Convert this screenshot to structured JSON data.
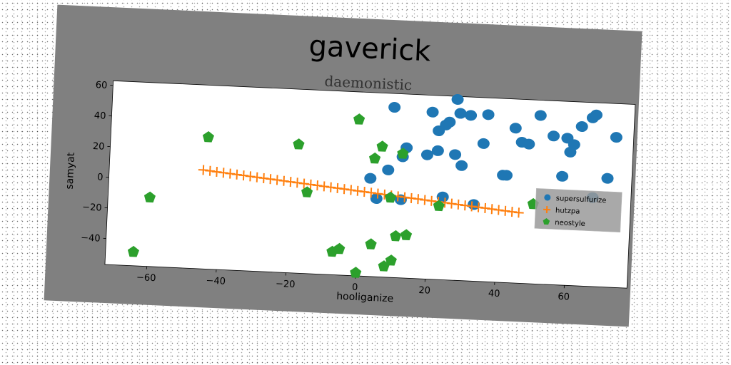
{
  "chart_data": {
    "type": "scatter",
    "title": "gaverick",
    "subtitle": "daemonistic",
    "xlabel": "hooliganize",
    "ylabel": "samyat",
    "xlim": [
      -72,
      78
    ],
    "ylim": [
      -57,
      63
    ],
    "xticks": [
      -60,
      -40,
      -20,
      0,
      20,
      40,
      60
    ],
    "yticks": [
      -40,
      -20,
      0,
      20,
      40,
      60
    ],
    "xtick_labels": [
      "−60",
      "−40",
      "−20",
      "0",
      "20",
      "40",
      "60"
    ],
    "ytick_labels": [
      "−40",
      "−20",
      "0",
      "20",
      "40",
      "60"
    ],
    "legend_position": "right",
    "grid": false,
    "background_color": "#808080",
    "series": [
      {
        "name": "supersulfurize",
        "marker": "circle",
        "color": "#1f77b4",
        "points": [
          [
            9,
            54
          ],
          [
            27,
            61
          ],
          [
            20,
            52
          ],
          [
            25,
            46
          ],
          [
            24,
            44
          ],
          [
            28,
            52
          ],
          [
            31,
            51
          ],
          [
            36,
            52
          ],
          [
            22,
            40
          ],
          [
            44,
            44
          ],
          [
            51,
            53
          ],
          [
            55,
            40
          ],
          [
            59,
            39
          ],
          [
            61,
            35
          ],
          [
            63,
            47
          ],
          [
            66,
            53
          ],
          [
            67,
            55
          ],
          [
            73,
            41
          ],
          [
            13,
            28
          ],
          [
            12,
            22
          ],
          [
            19,
            24
          ],
          [
            22,
            27
          ],
          [
            27,
            25
          ],
          [
            29,
            18
          ],
          [
            35,
            33
          ],
          [
            41,
            13
          ],
          [
            42,
            13
          ],
          [
            46,
            35
          ],
          [
            48,
            34
          ],
          [
            60,
            30
          ],
          [
            58,
            14
          ],
          [
            71,
            14
          ],
          [
            8,
            13
          ],
          [
            3,
            7
          ],
          [
            5,
            -6
          ],
          [
            12,
            -6
          ],
          [
            24,
            -3
          ],
          [
            33,
            -7
          ],
          [
            67,
            1
          ]
        ]
      },
      {
        "name": "hutzpa",
        "marker": "plus",
        "color": "#ff7f0e",
        "x_start": -45,
        "x_end": 46,
        "y_start": 7.5,
        "y_end": -11,
        "count": 48
      },
      {
        "name": "neostyle",
        "marker": "pentagon",
        "color": "#2ca02c",
        "points": [
          [
            -1,
            45
          ],
          [
            -44,
            29
          ],
          [
            -18,
            27
          ],
          [
            6,
            28
          ],
          [
            4,
            20
          ],
          [
            12,
            24
          ],
          [
            -60,
            -12
          ],
          [
            -15,
            -4
          ],
          [
            9,
            -5
          ],
          [
            23,
            -9
          ],
          [
            50,
            -5
          ],
          [
            -64,
            -48
          ],
          [
            -7,
            -42
          ],
          [
            -5,
            -40
          ],
          [
            4,
            -36
          ],
          [
            11,
            -30
          ],
          [
            14,
            -29
          ],
          [
            10,
            -46
          ],
          [
            8,
            -50
          ],
          [
            0,
            -55
          ]
        ]
      }
    ]
  }
}
